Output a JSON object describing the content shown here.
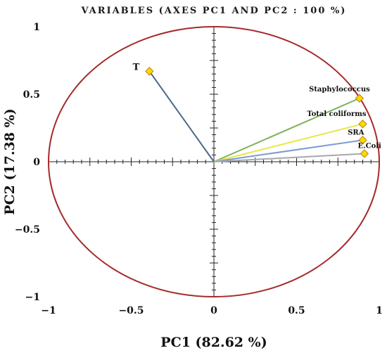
{
  "chart_data": {
    "type": "scatter",
    "subtype": "pca-correlation-circle",
    "title": "VARIABLES (AXES PC1 AND PC2 : 100 %)",
    "xlabel": "PC1 (82.62 %)",
    "ylabel": "PC2 (17.38 %)",
    "xlim": [
      -1,
      1
    ],
    "ylim": [
      -1,
      1
    ],
    "x_ticks": [
      -1,
      -0.5,
      0,
      0.5,
      1
    ],
    "y_ticks": [
      -1,
      -0.5,
      0,
      0.5,
      1
    ],
    "x_tick_labels": [
      "−1",
      "−0.5",
      "0",
      "0.5",
      "1"
    ],
    "y_tick_labels": [
      "−1",
      "−0.5",
      "0",
      "0.5",
      "1"
    ],
    "grid": false,
    "circle_color": "#a52a2a",
    "marker_color": "#ffd700",
    "marker_edge_color": "#b8860b",
    "points": [
      {
        "label": "T",
        "x": -0.39,
        "y": 0.67,
        "color": "#4a6a8a"
      },
      {
        "label": "Staphylococcus",
        "x": 0.88,
        "y": 0.47,
        "color": "#7fb05a"
      },
      {
        "label": "Total coliforms",
        "x": 0.9,
        "y": 0.28,
        "color": "#e8e84a"
      },
      {
        "label": "SRA",
        "x": 0.9,
        "y": 0.16,
        "color": "#7a9ad8"
      },
      {
        "label": "E.Coli",
        "x": 0.91,
        "y": 0.06,
        "color": "#a8a8a8"
      }
    ]
  }
}
